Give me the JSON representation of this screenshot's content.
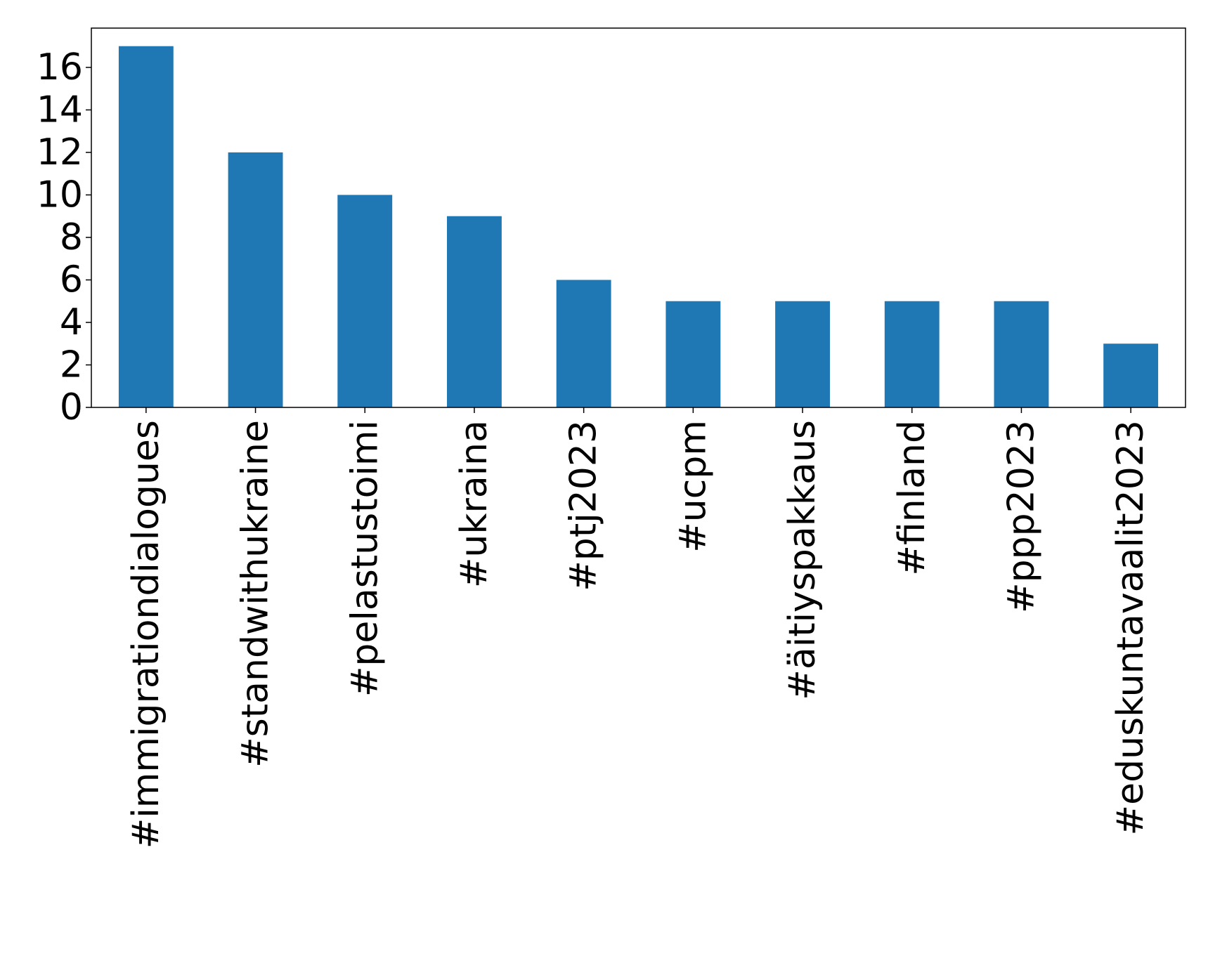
{
  "chart_data": {
    "type": "bar",
    "title": "",
    "xlabel": "",
    "ylabel": "",
    "categories": [
      "#immigrationdialogues",
      "#standwithukraine",
      "#pelastustoimi",
      "#ukraina",
      "#ptj2023",
      "#ucpm",
      "#äitiyspakkaus",
      "#finland",
      "#ppp2023",
      "#eduskuntavaalit2023"
    ],
    "values": [
      17,
      12,
      10,
      9,
      6,
      5,
      5,
      5,
      5,
      3
    ],
    "ylim": [
      0,
      17.85
    ],
    "yticks": [
      0,
      2,
      4,
      6,
      8,
      10,
      12,
      14,
      16
    ],
    "bar_color": "#1f77b4",
    "grid": false,
    "legend": "none"
  }
}
